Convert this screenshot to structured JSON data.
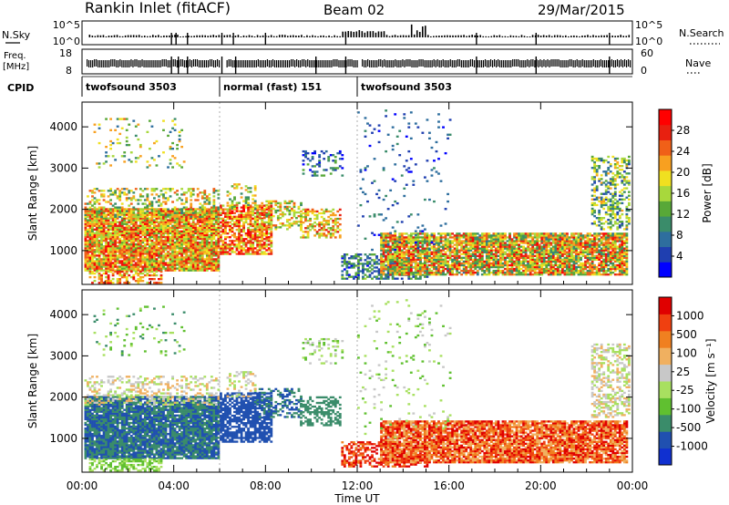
{
  "header": {
    "station": "Rankin Inlet (fitACF)",
    "beam": "Beam 02",
    "date": "29/Mar/2015"
  },
  "strip_panels": {
    "nsky_label": "N.Sky",
    "nsky_ticks": [
      "10^5",
      "10^0"
    ],
    "nsearch_label": "N.Search",
    "nsearch_ticks": [
      "10^5",
      "10^0"
    ],
    "freq_label": "Freq.",
    "freq_unit": "[MHz]",
    "freq_ticks": [
      "18",
      "8"
    ],
    "nave_label": "Nave",
    "nave_ticks": [
      "60",
      "0"
    ],
    "cpid_label": "CPID",
    "cpid_segments": [
      {
        "label": "twofsound 3503",
        "start": 0.0,
        "end": 6.0
      },
      {
        "label": "normal (fast) 151",
        "start": 6.0,
        "end": 12.0
      },
      {
        "label": "twofsound 3503",
        "start": 12.0,
        "end": 24.0
      }
    ]
  },
  "colors": {
    "power": [
      "#0000ff",
      "#1f3fb0",
      "#2e6e9e",
      "#3a8c6a",
      "#58a838",
      "#a8d83c",
      "#f0e020",
      "#f8a020",
      "#f06018",
      "#e82010",
      "#ff0000"
    ],
    "velocity": [
      "#e00000",
      "#f04010",
      "#f08020",
      "#f0b060",
      "#c8c8c8",
      "#a8e060",
      "#60c030",
      "#3a8c6a",
      "#2050b0",
      "#1030d0"
    ]
  },
  "chart_data": [
    {
      "type": "heatmap",
      "title": "",
      "ylabel": "Slant Range [km]",
      "y_ticks": [
        "1000",
        "2000",
        "3000",
        "4000"
      ],
      "ylim": [
        180,
        4600
      ],
      "xlim": [
        0,
        24
      ],
      "x_ticks": [
        "00:00",
        "04:00",
        "08:00",
        "12:00",
        "16:00",
        "20:00",
        "00:00"
      ],
      "colorbar_label": "Power [dB]",
      "colorbar_ticks": [
        "4",
        "8",
        "12",
        "16",
        "20",
        "24",
        "28"
      ],
      "colorbar_range": [
        0,
        30
      ]
    },
    {
      "type": "heatmap",
      "title": "",
      "ylabel": "Slant Range [km]",
      "y_ticks": [
        "1000",
        "2000",
        "3000",
        "4000"
      ],
      "ylim": [
        180,
        4600
      ],
      "xlim": [
        0,
        24
      ],
      "x_ticks": [
        "00:00",
        "04:00",
        "08:00",
        "12:00",
        "16:00",
        "20:00",
        "00:00"
      ],
      "xlabel": "Time UT",
      "colorbar_label": "Velocity [m s⁻¹]",
      "colorbar_ticks": [
        "1000",
        "500",
        "100",
        "25",
        "-25",
        "-100",
        "-500",
        "-1000"
      ]
    }
  ]
}
